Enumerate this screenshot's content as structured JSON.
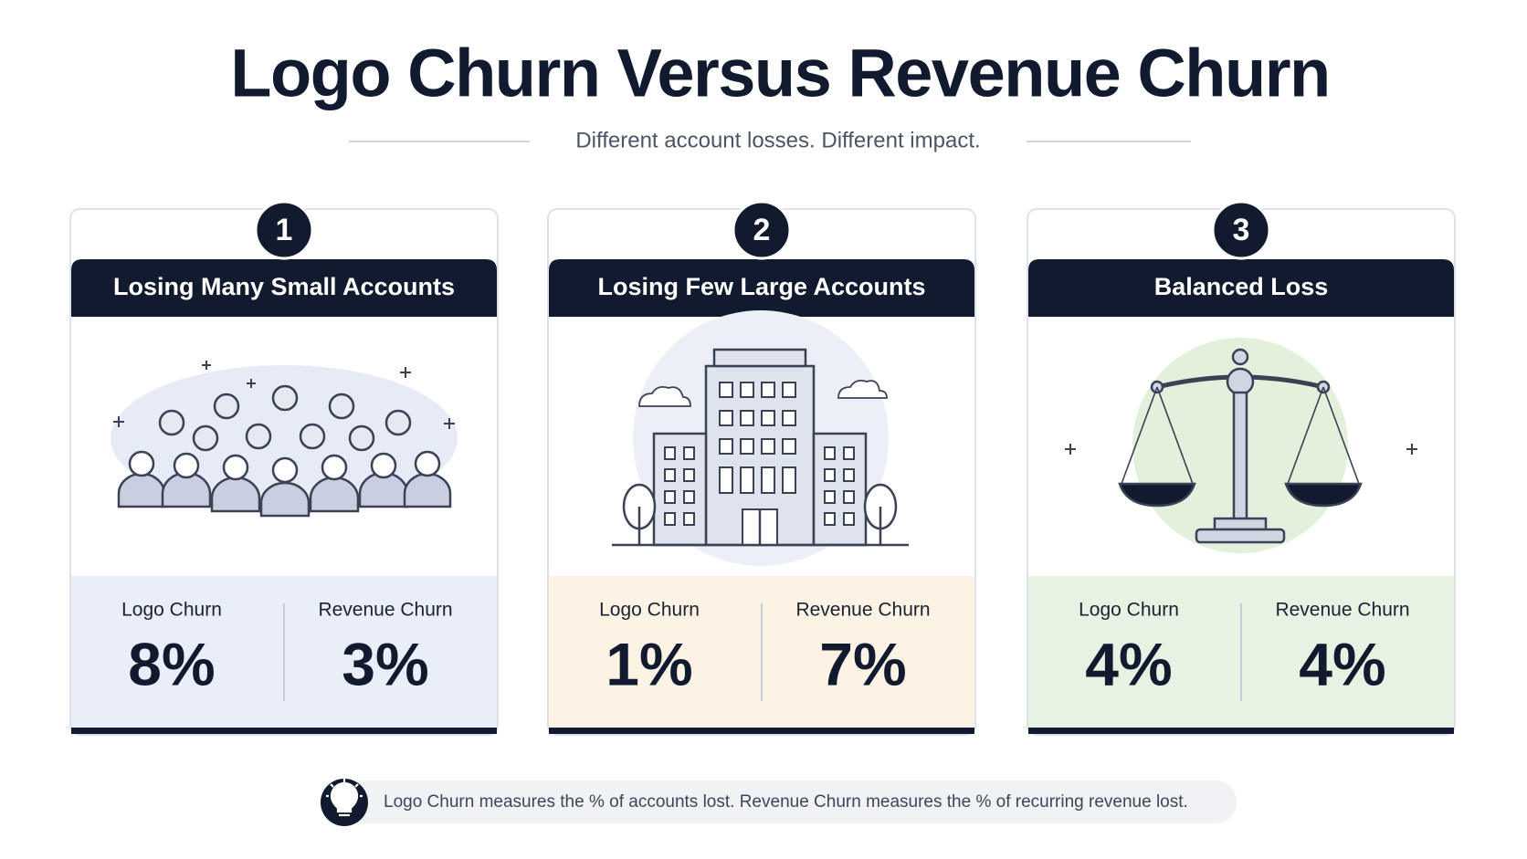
{
  "header": {
    "title": "Logo Churn Versus Revenue Churn",
    "subtitle": "Different account losses. Different impact."
  },
  "cards": [
    {
      "number": "1",
      "title": "Losing Many Small Accounts",
      "logo_label": "Logo Churn",
      "logo_value": "8%",
      "revenue_label": "Revenue Churn",
      "revenue_value": "3%"
    },
    {
      "number": "2",
      "title": "Losing Few Large Accounts",
      "logo_label": "Logo Churn",
      "logo_value": "1%",
      "revenue_label": "Revenue Churn",
      "revenue_value": "7%"
    },
    {
      "number": "3",
      "title": "Balanced Loss",
      "logo_label": "Logo Churn",
      "logo_value": "4%",
      "revenue_label": "Revenue Churn",
      "revenue_value": "4%"
    }
  ],
  "footer": {
    "note": "Logo Churn measures the % of accounts lost. Revenue Churn measures the % of recurring revenue lost."
  }
}
